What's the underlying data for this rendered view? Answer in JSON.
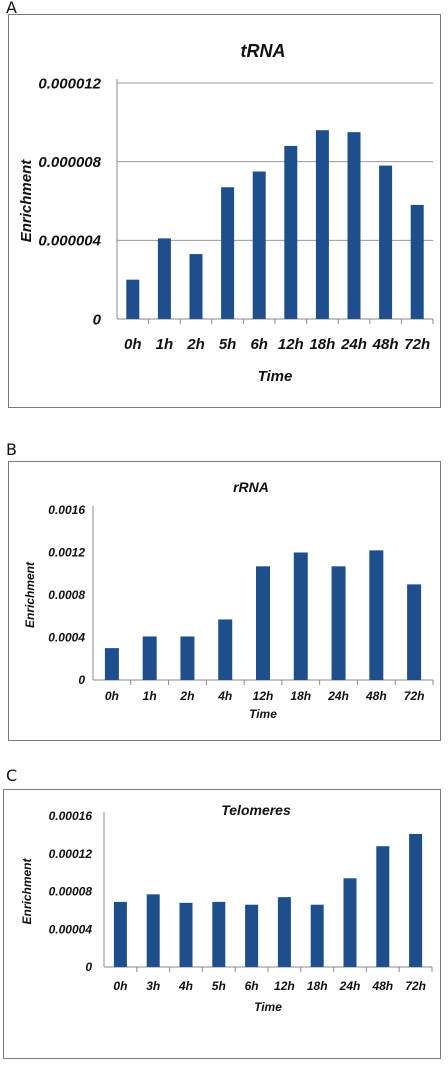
{
  "panels": [
    {
      "letter": "A"
    },
    {
      "letter": "B"
    },
    {
      "letter": "C"
    }
  ],
  "chart_data": [
    {
      "type": "bar",
      "title": "tRNA",
      "xlabel": "Time",
      "ylabel": "Enrichment",
      "categories": [
        "0h",
        "1h",
        "2h",
        "5h",
        "6h",
        "12h",
        "18h",
        "24h",
        "48h",
        "72h"
      ],
      "values": [
        2e-06,
        4.1e-06,
        3.3e-06,
        6.7e-06,
        7.5e-06,
        8.8e-06,
        9.6e-06,
        9.5e-06,
        7.8e-06,
        5.8e-06
      ],
      "ylim": [
        0,
        1.2e-05
      ],
      "yticks": [
        "0",
        "0.000004",
        "0.000008",
        "0.000012"
      ],
      "grid": true,
      "bar_color": "#1f4e8c"
    },
    {
      "type": "bar",
      "title": "rRNA",
      "xlabel": "Time",
      "ylabel": "Enrichment",
      "categories": [
        "0h",
        "1h",
        "2h",
        "4h",
        "12h",
        "18h",
        "24h",
        "48h",
        "72h"
      ],
      "values": [
        0.0003,
        0.00041,
        0.00041,
        0.00057,
        0.00107,
        0.0012,
        0.00107,
        0.00122,
        0.0009
      ],
      "ylim": [
        0,
        0.0016
      ],
      "yticks": [
        "0",
        "0.0004",
        "0.0008",
        "0.0012",
        "0.0016"
      ],
      "grid": false,
      "bar_color": "#1f4e8c"
    },
    {
      "type": "bar",
      "title": "Telomeres",
      "xlabel": "Time",
      "ylabel": "Enrichment",
      "categories": [
        "0h",
        "3h",
        "4h",
        "5h",
        "6h",
        "12h",
        "18h",
        "24h",
        "48h",
        "72h"
      ],
      "values": [
        6.9e-05,
        7.7e-05,
        6.8e-05,
        6.9e-05,
        6.6e-05,
        7.4e-05,
        6.6e-05,
        9.4e-05,
        0.000128,
        0.000141
      ],
      "ylim": [
        0,
        0.00016
      ],
      "yticks": [
        "0",
        "0.00004",
        "0.00008",
        "0.00012",
        "0.00016"
      ],
      "grid": false,
      "bar_color": "#1f4e8c"
    }
  ]
}
